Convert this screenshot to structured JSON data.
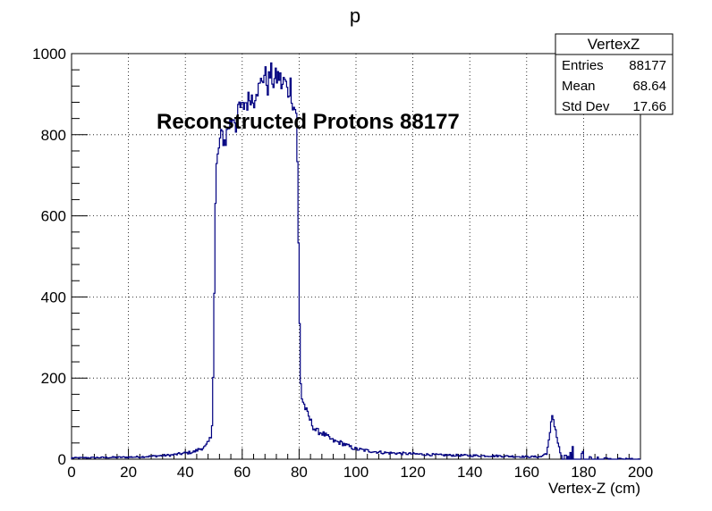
{
  "chart_data": {
    "type": "histogram-step",
    "title": "p",
    "xlabel": "Vertex-Z (cm)",
    "ylabel": "",
    "xlim": [
      0,
      200
    ],
    "ylim": [
      0,
      1000
    ],
    "x_ticks": [
      "0",
      "20",
      "40",
      "60",
      "80",
      "100",
      "120",
      "140",
      "160",
      "180",
      "200"
    ],
    "y_ticks": [
      "0",
      "200",
      "400",
      "600",
      "800",
      "1000"
    ],
    "grid": true,
    "line_color": "#000080",
    "annotation": "Reconstructed Protons 88177",
    "stats_box": {
      "title": "VertexZ",
      "rows": [
        {
          "label": "Entries",
          "value": "88177"
        },
        {
          "label": "Mean",
          "value": "68.64"
        },
        {
          "label": "Std Dev",
          "value": "17.66"
        }
      ]
    },
    "series": [
      {
        "points": [
          [
            0,
            3
          ],
          [
            10,
            4
          ],
          [
            20,
            5
          ],
          [
            25,
            6
          ],
          [
            30,
            8
          ],
          [
            35,
            10
          ],
          [
            40,
            15
          ],
          [
            43,
            18
          ],
          [
            45,
            25
          ],
          [
            47,
            30
          ],
          [
            48,
            40
          ],
          [
            49,
            55
          ],
          [
            49.5,
            100
          ],
          [
            50,
            280
          ],
          [
            50.5,
            600
          ],
          [
            51,
            720
          ],
          [
            52,
            780
          ],
          [
            53,
            800
          ],
          [
            54,
            780
          ],
          [
            55,
            820
          ],
          [
            56,
            830
          ],
          [
            57,
            850
          ],
          [
            58,
            820
          ],
          [
            59,
            870
          ],
          [
            60,
            860
          ],
          [
            61,
            880
          ],
          [
            62,
            880
          ],
          [
            63,
            900
          ],
          [
            64,
            880
          ],
          [
            65,
            920
          ],
          [
            66,
            910
          ],
          [
            67,
            940
          ],
          [
            68,
            950
          ],
          [
            69,
            920
          ],
          [
            70,
            955
          ],
          [
            71,
            930
          ],
          [
            72,
            940
          ],
          [
            73,
            945
          ],
          [
            74,
            920
          ],
          [
            75,
            935
          ],
          [
            76,
            900
          ],
          [
            77,
            925
          ],
          [
            78,
            870
          ],
          [
            79,
            860
          ],
          [
            79.5,
            690
          ],
          [
            80,
            420
          ],
          [
            80.5,
            200
          ],
          [
            81,
            150
          ],
          [
            82,
            130
          ],
          [
            83,
            110
          ],
          [
            84,
            95
          ],
          [
            85,
            80
          ],
          [
            86,
            70
          ],
          [
            88,
            65
          ],
          [
            90,
            55
          ],
          [
            92,
            45
          ],
          [
            95,
            40
          ],
          [
            98,
            30
          ],
          [
            100,
            25
          ],
          [
            105,
            20
          ],
          [
            110,
            16
          ],
          [
            120,
            13
          ],
          [
            130,
            10
          ],
          [
            140,
            9
          ],
          [
            150,
            8
          ],
          [
            160,
            6
          ],
          [
            165,
            6
          ],
          [
            167,
            15
          ],
          [
            168,
            50
          ],
          [
            169,
            110
          ],
          [
            170,
            80
          ],
          [
            171,
            40
          ],
          [
            172,
            10
          ],
          [
            175,
            6
          ],
          [
            176,
            40
          ],
          [
            177,
            15
          ],
          [
            178,
            30
          ],
          [
            179,
            8
          ],
          [
            180,
            20
          ],
          [
            182,
            5
          ],
          [
            185,
            5
          ],
          [
            190,
            2
          ],
          [
            200,
            1
          ]
        ]
      }
    ]
  }
}
